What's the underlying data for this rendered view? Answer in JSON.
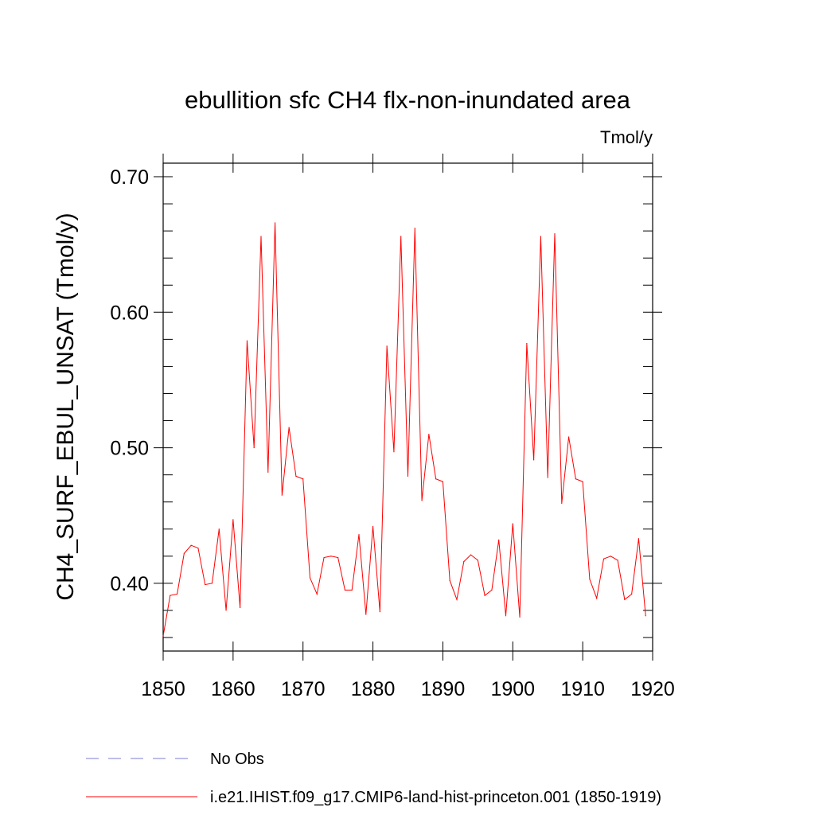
{
  "chart_data": {
    "type": "line",
    "title": "ebullition sfc CH4 flx-non-inundated area",
    "units_label": "Tmol/y",
    "ylabel": "CH4_SURF_EBUL_UNSAT  (Tmol/y)",
    "xlabel": "",
    "xlim": [
      1850,
      1920
    ],
    "ylim": [
      0.35,
      0.71
    ],
    "x_ticks": [
      1850,
      1860,
      1870,
      1880,
      1890,
      1900,
      1910,
      1920
    ],
    "x_tick_labels": [
      "1850",
      "1860",
      "1870",
      "1880",
      "1890",
      "1900",
      "1910",
      "1920"
    ],
    "y_ticks": [
      0.4,
      0.5,
      0.6,
      0.7
    ],
    "y_tick_labels": [
      "0.40",
      "0.50",
      "0.60",
      "0.70"
    ],
    "grid": false,
    "legend_position": "bottom",
    "series": [
      {
        "name": "i.e21.IHIST.f09_g17.CMIP6-land-hist-princeton.001 (1850-1919)",
        "color": "#ff0000",
        "x": [
          1850,
          1851,
          1852,
          1853,
          1854,
          1855,
          1856,
          1857,
          1858,
          1859,
          1860,
          1861,
          1862,
          1863,
          1864,
          1865,
          1866,
          1867,
          1868,
          1869,
          1870,
          1871,
          1872,
          1873,
          1874,
          1875,
          1876,
          1877,
          1878,
          1879,
          1880,
          1881,
          1882,
          1883,
          1884,
          1885,
          1886,
          1887,
          1888,
          1889,
          1890,
          1891,
          1892,
          1893,
          1894,
          1895,
          1896,
          1897,
          1898,
          1899,
          1900,
          1901,
          1902,
          1903,
          1904,
          1905,
          1906,
          1907,
          1908,
          1909,
          1910,
          1911,
          1912,
          1913,
          1914,
          1915,
          1916,
          1917,
          1918,
          1919
        ],
        "values": [
          0.361,
          0.391,
          0.392,
          0.422,
          0.428,
          0.426,
          0.399,
          0.4,
          0.44,
          0.38,
          0.447,
          0.382,
          0.579,
          0.5,
          0.656,
          0.482,
          0.666,
          0.465,
          0.515,
          0.479,
          0.477,
          0.404,
          0.392,
          0.419,
          0.42,
          0.419,
          0.395,
          0.395,
          0.436,
          0.377,
          0.442,
          0.379,
          0.575,
          0.497,
          0.656,
          0.479,
          0.662,
          0.461,
          0.51,
          0.477,
          0.475,
          0.402,
          0.388,
          0.416,
          0.421,
          0.417,
          0.391,
          0.395,
          0.432,
          0.376,
          0.444,
          0.375,
          0.577,
          0.491,
          0.656,
          0.478,
          0.658,
          0.459,
          0.508,
          0.477,
          0.475,
          0.403,
          0.389,
          0.418,
          0.42,
          0.417,
          0.388,
          0.392,
          0.433,
          0.376
        ]
      }
    ],
    "legend": [
      {
        "label": "No Obs",
        "style": "dashed",
        "color": "#7b7bd6"
      },
      {
        "label": "i.e21.IHIST.f09_g17.CMIP6-land-hist-princeton.001 (1850-1919)",
        "style": "solid",
        "color": "#ff0000"
      }
    ]
  }
}
